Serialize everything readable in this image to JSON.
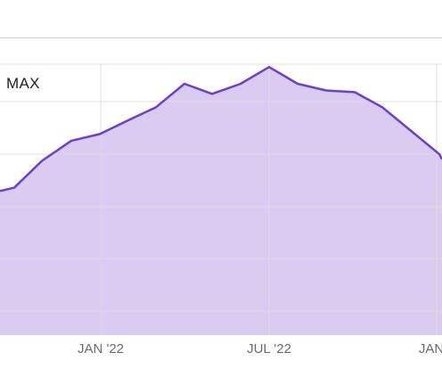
{
  "range_selector": {
    "selected": "MAX"
  },
  "chart_data": {
    "type": "area",
    "title": "",
    "xlabel": "",
    "ylabel": "",
    "x_tick_labels": [
      "JAN '22",
      "JUL '22",
      "JAN"
    ],
    "x": [
      0,
      1,
      2,
      3,
      4,
      5,
      6,
      7,
      8,
      9,
      10,
      11,
      12,
      13,
      14,
      15,
      16,
      17
    ],
    "series": [
      {
        "values": [
          43,
          44,
          52,
          58,
          60,
          64,
          68,
          75,
          72,
          75,
          80,
          75,
          73,
          72.5,
          68,
          61,
          54,
          52.5
        ]
      }
    ],
    "ylim": [
      0,
      100
    ],
    "grid": true,
    "colors": {
      "line": "#6a3fd1",
      "fill": "#d9ccf0",
      "grid": "#dcdcdc"
    }
  }
}
